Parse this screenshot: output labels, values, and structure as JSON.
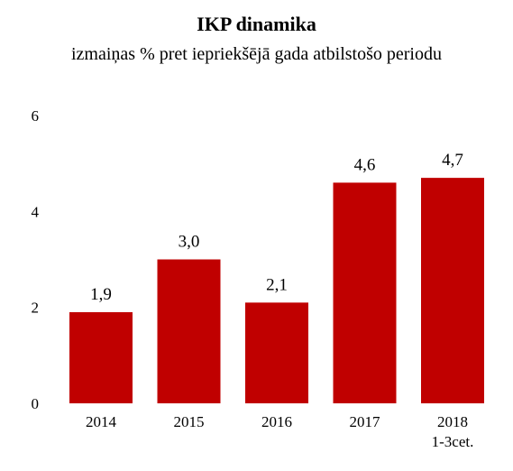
{
  "chart_data": {
    "type": "bar",
    "title": "IKP dinamika",
    "subtitle": "izmaiņas % pret iepriekšējā gada atbilstošo periodu",
    "categories": [
      [
        "2014"
      ],
      [
        "2015"
      ],
      [
        "2016"
      ],
      [
        "2017"
      ],
      [
        "2018",
        "1-3cet."
      ]
    ],
    "values": [
      1.9,
      3.0,
      2.1,
      4.6,
      4.7
    ],
    "value_labels": [
      "1,9",
      "3,0",
      "2,1",
      "4,6",
      "4,7"
    ],
    "yticks": [
      0,
      2,
      4,
      6
    ],
    "ytick_labels": [
      "0",
      "2",
      "4",
      "6"
    ],
    "ylim": [
      0,
      6
    ],
    "grid": false,
    "legend": "none",
    "bar_color": "#C00000"
  }
}
